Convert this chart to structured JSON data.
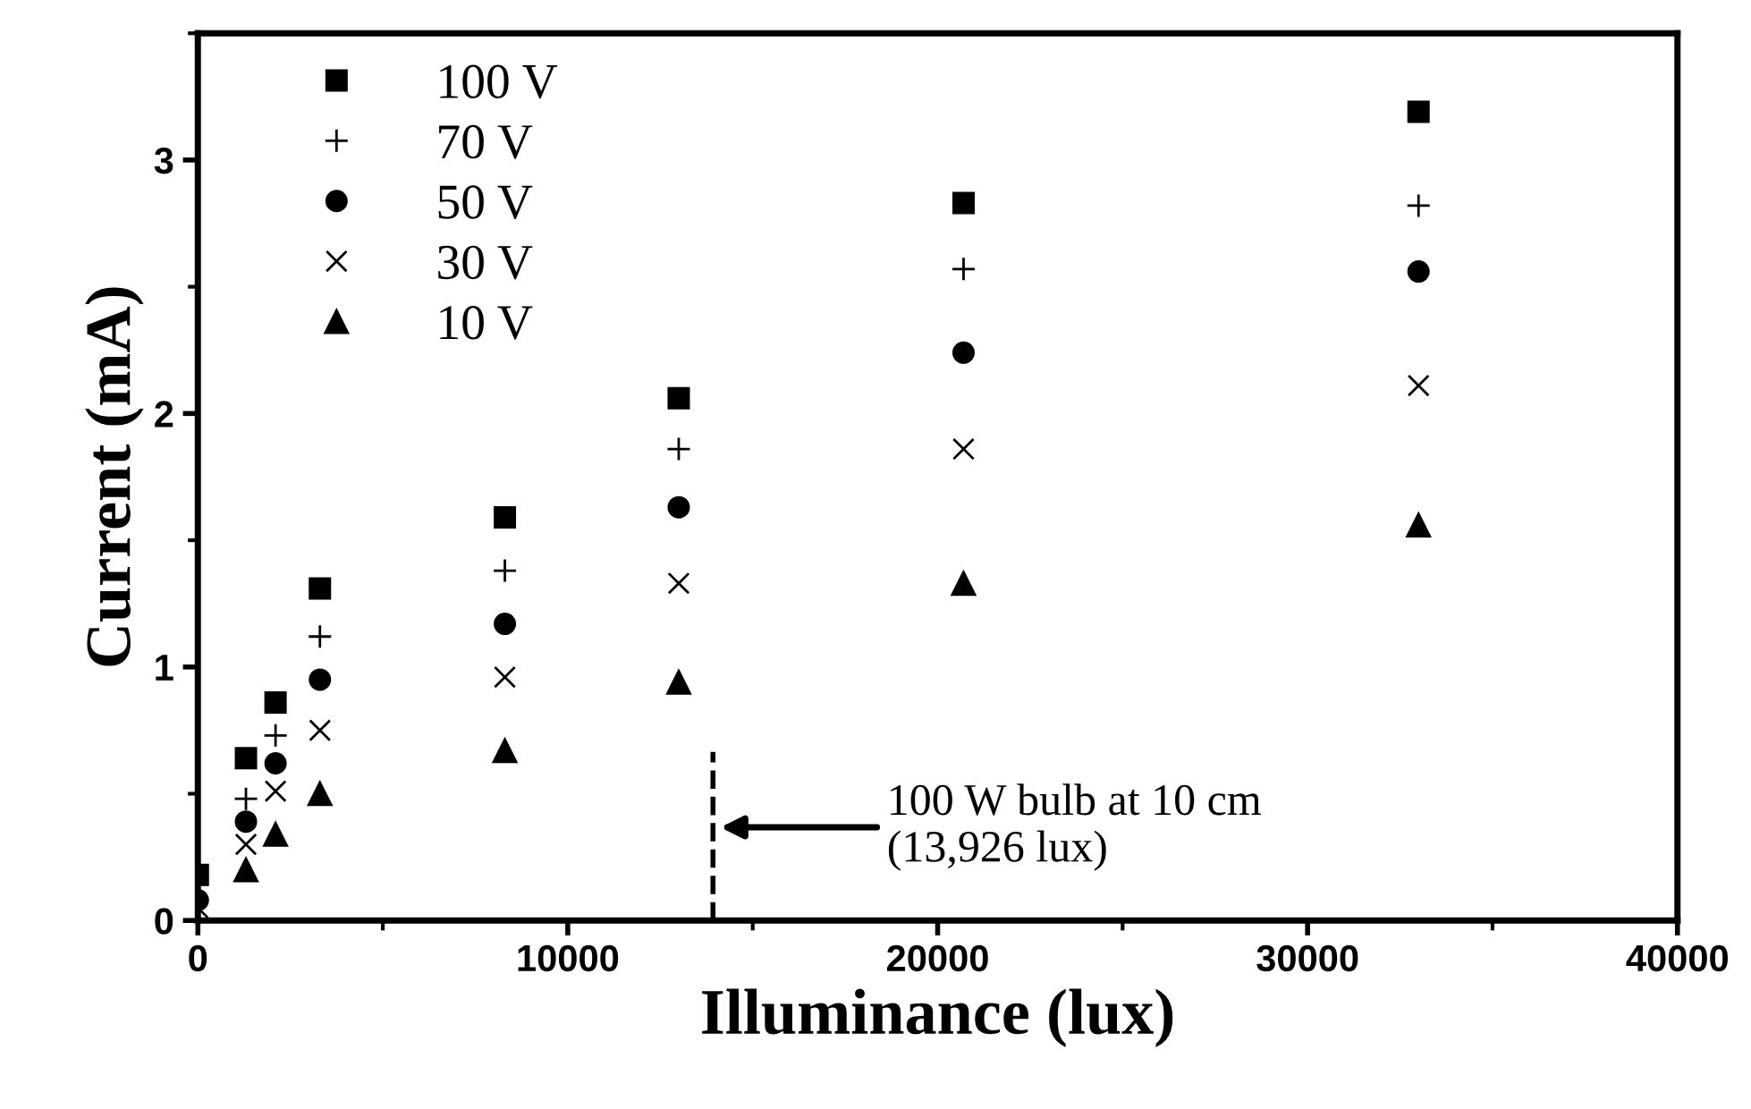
{
  "chart_data": {
    "type": "scatter",
    "xlabel": "Illuminance (lux)",
    "ylabel": "Current (mA)",
    "x": [
      0,
      1300,
      2100,
      3300,
      8300,
      13000,
      20700,
      33000
    ],
    "series": [
      {
        "name": "100 V",
        "color": "#000000",
        "marker": "square",
        "values": [
          0.18,
          0.64,
          0.86,
          1.31,
          1.59,
          2.06,
          2.83,
          3.19
        ]
      },
      {
        "name": "70 V",
        "color": "#000000",
        "marker": "plus",
        "values": [
          null,
          0.48,
          0.73,
          1.12,
          1.38,
          1.86,
          2.57,
          2.82
        ]
      },
      {
        "name": "50 V",
        "color": "#000000",
        "marker": "circle",
        "values": [
          0.08,
          0.39,
          0.62,
          0.95,
          1.17,
          1.63,
          2.24,
          2.56
        ]
      },
      {
        "name": "30 V",
        "color": "#000000",
        "marker": "cross",
        "values": [
          0.05,
          0.3,
          0.51,
          0.75,
          0.96,
          1.33,
          1.86,
          2.11
        ]
      },
      {
        "name": "10 V",
        "color": "#000000",
        "marker": "triangle",
        "values": [
          null,
          0.2,
          0.34,
          0.5,
          0.67,
          0.94,
          1.33,
          1.56
        ]
      }
    ],
    "xlim": [
      0,
      40000
    ],
    "ylim": [
      0,
      3.5
    ],
    "xticks": [
      0,
      10000,
      20000,
      30000,
      40000
    ],
    "yticks": [
      0,
      1,
      2,
      3
    ],
    "ref_lines": [
      {
        "axis": "x",
        "value": 13926,
        "label": "100 W bulb at 10 cm\n(13,926 lux)",
        "line_style": "dashed",
        "color": "#000000"
      }
    ],
    "legend": "top left",
    "grid": false
  }
}
